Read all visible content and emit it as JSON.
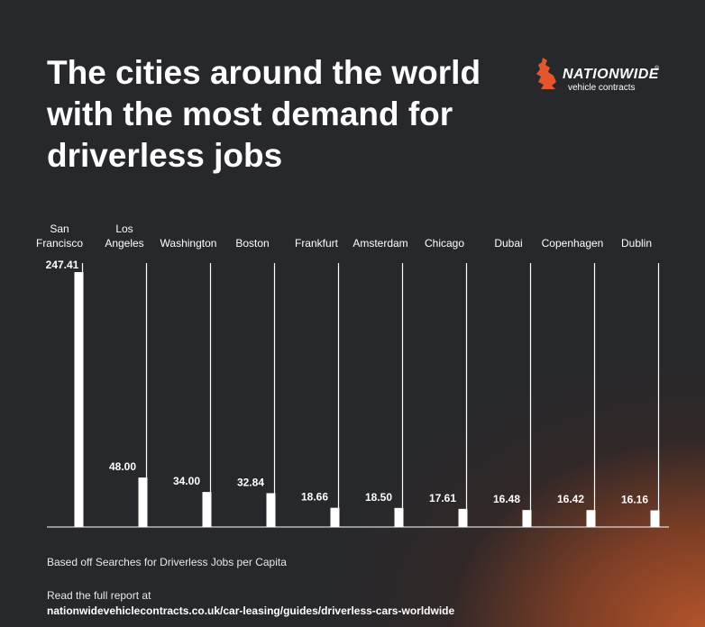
{
  "header": {
    "title": "The cities around the world with the most demand for driverless jobs"
  },
  "logo": {
    "wordmark": "NATIONWIDE",
    "registered": "®",
    "tagline": "vehicle contracts",
    "accent_color": "#e4572e"
  },
  "chart_data": {
    "type": "bar",
    "orientation": "vertical",
    "categories": [
      "San Francisco",
      "Los Angeles",
      "Washington",
      "Boston",
      "Frankfurt",
      "Amsterdam",
      "Chicago",
      "Dubai",
      "Copenhagen",
      "Dublin"
    ],
    "category_lines": [
      [
        "San",
        "Francisco"
      ],
      [
        "Los",
        "Angeles"
      ],
      [
        "Washington"
      ],
      [
        "Boston"
      ],
      [
        "Frankfurt"
      ],
      [
        "Amsterdam"
      ],
      [
        "Chicago"
      ],
      [
        "Dubai"
      ],
      [
        "Copenhagen"
      ],
      [
        "Dublin"
      ]
    ],
    "values": [
      247.41,
      48.0,
      34.0,
      32.84,
      18.66,
      18.5,
      17.61,
      16.48,
      16.42,
      16.16
    ],
    "value_labels": [
      "247.41",
      "48.00",
      "34.00",
      "32.84",
      "18.66",
      "18.50",
      "17.61",
      "16.48",
      "16.42",
      "16.16"
    ],
    "ylim": [
      0,
      247.41
    ],
    "grid": false,
    "legend": "none",
    "bar_color": "#ffffff"
  },
  "footer": {
    "note": "Based off Searches for Driverless Jobs per Capita",
    "report_intro": "Read the full report at",
    "report_url": "nationwidevehiclecontracts.co.uk/car-leasing/guides/driverless-cars-worldwide"
  }
}
